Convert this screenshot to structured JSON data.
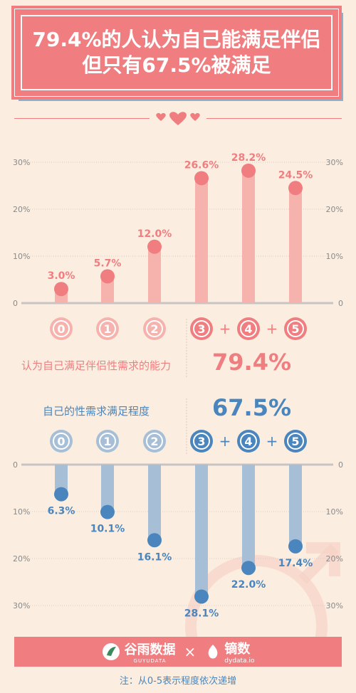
{
  "header": {
    "title_line1": "79.4%的人认为自己能满足伴侣",
    "title_line2": "但只有67.5%被满足"
  },
  "chart_data": [
    {
      "type": "bar",
      "categories": [
        "0",
        "1",
        "2",
        "3",
        "4",
        "5"
      ],
      "values": [
        3.0,
        5.7,
        12.0,
        26.6,
        28.2,
        24.5
      ],
      "value_labels": [
        "3.0%",
        "5.7%",
        "12.0%",
        "26.6%",
        "28.2%",
        "24.5%"
      ],
      "yticks": [
        "0",
        "10%",
        "20%",
        "30%"
      ],
      "ylim": [
        0,
        30
      ],
      "legend_label": "认为自己满足伴侣性需求的能力",
      "highlight_total": "79.4%",
      "color": "#f07e80"
    },
    {
      "type": "bar",
      "categories": [
        "0",
        "1",
        "2",
        "3",
        "4",
        "5"
      ],
      "values": [
        6.3,
        10.1,
        16.1,
        28.1,
        22.0,
        17.4
      ],
      "value_labels": [
        "6.3%",
        "10.1%",
        "16.1%",
        "28.1%",
        "22.0%",
        "17.4%"
      ],
      "yticks": [
        "0",
        "10%",
        "20%",
        "30%"
      ],
      "ylim": [
        0,
        30
      ],
      "legend_label": "自己的性需求满足程度",
      "highlight_total": "67.5%",
      "color": "#4a85bd"
    }
  ],
  "plus_sign": "+",
  "footer": {
    "brand1": "谷雨数据",
    "brand1_sub": "GUYUDATA",
    "separator": "×",
    "brand2": "镝数",
    "brand2_sub": "dydata.io"
  },
  "note": "注：从0-5表示程度依次递增",
  "colors": {
    "background": "#fbeee0",
    "accent_red": "#f07e80",
    "accent_blue": "#4a85bd",
    "bar_red": "#f6b3ae",
    "bar_blue": "#a6bfd6"
  }
}
